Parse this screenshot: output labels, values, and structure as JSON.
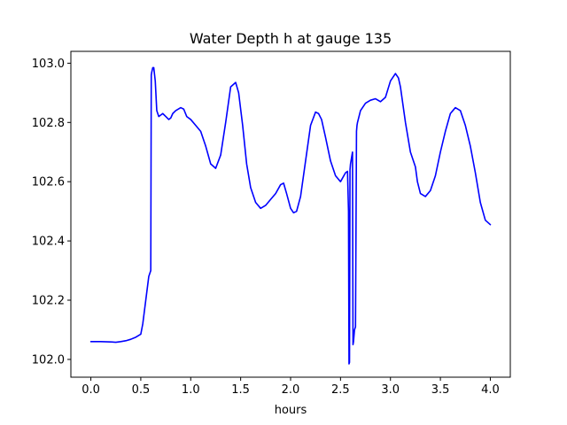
{
  "chart_data": {
    "type": "line",
    "title": "Water Depth h at gauge 135",
    "xlabel": "hours",
    "ylabel": "",
    "xlim": [
      -0.2,
      4.2
    ],
    "ylim": [
      101.94,
      103.04
    ],
    "xticks": [
      0.0,
      0.5,
      1.0,
      1.5,
      2.0,
      2.5,
      3.0,
      3.5,
      4.0
    ],
    "xtick_labels": [
      "0.0",
      "0.5",
      "1.0",
      "1.5",
      "2.0",
      "2.5",
      "3.0",
      "3.5",
      "4.0"
    ],
    "yticks": [
      102.0,
      102.2,
      102.4,
      102.6,
      102.8,
      103.0
    ],
    "ytick_labels": [
      "102.0",
      "102.2",
      "102.4",
      "102.6",
      "102.8",
      "103.0"
    ],
    "grid": false,
    "series": [
      {
        "color": "#0000ff",
        "x": [
          0.0,
          0.1,
          0.2,
          0.25,
          0.3,
          0.35,
          0.4,
          0.45,
          0.5,
          0.52,
          0.55,
          0.58,
          0.6,
          0.605,
          0.61,
          0.62,
          0.63,
          0.645,
          0.66,
          0.68,
          0.72,
          0.75,
          0.78,
          0.8,
          0.82,
          0.85,
          0.9,
          0.93,
          0.96,
          1.0,
          1.05,
          1.1,
          1.15,
          1.2,
          1.25,
          1.3,
          1.35,
          1.4,
          1.45,
          1.48,
          1.52,
          1.56,
          1.6,
          1.65,
          1.7,
          1.75,
          1.8,
          1.85,
          1.9,
          1.93,
          1.96,
          2.0,
          2.03,
          2.06,
          2.1,
          2.15,
          2.2,
          2.25,
          2.28,
          2.31,
          2.35,
          2.4,
          2.45,
          2.5,
          2.55,
          2.57,
          2.58,
          2.585,
          2.59,
          2.595,
          2.6,
          2.61,
          2.62,
          2.625,
          2.63,
          2.64,
          2.65,
          2.66,
          2.665,
          2.67,
          2.7,
          2.75,
          2.8,
          2.85,
          2.9,
          2.95,
          3.0,
          3.05,
          3.08,
          3.1,
          3.15,
          3.2,
          3.25,
          3.27,
          3.3,
          3.35,
          3.4,
          3.45,
          3.5,
          3.55,
          3.6,
          3.65,
          3.7,
          3.75,
          3.8,
          3.85,
          3.9,
          3.95,
          4.0
        ],
        "y": [
          102.06,
          102.06,
          102.059,
          102.058,
          102.06,
          102.063,
          102.068,
          102.075,
          102.085,
          102.12,
          102.2,
          102.28,
          102.3,
          102.96,
          102.97,
          102.985,
          102.985,
          102.94,
          102.84,
          102.82,
          102.83,
          102.82,
          102.81,
          102.815,
          102.83,
          102.84,
          102.85,
          102.845,
          102.82,
          102.81,
          102.79,
          102.77,
          102.72,
          102.66,
          102.645,
          102.69,
          102.8,
          102.92,
          102.935,
          102.9,
          102.79,
          102.66,
          102.58,
          102.53,
          102.51,
          102.52,
          102.54,
          102.56,
          102.59,
          102.595,
          102.56,
          102.51,
          102.495,
          102.5,
          102.55,
          102.67,
          102.79,
          102.835,
          102.83,
          102.81,
          102.75,
          102.67,
          102.62,
          102.6,
          102.63,
          102.635,
          102.5,
          101.985,
          101.99,
          102.64,
          102.66,
          102.68,
          102.7,
          102.05,
          102.06,
          102.1,
          102.11,
          102.77,
          102.79,
          102.8,
          102.84,
          102.865,
          102.875,
          102.88,
          102.87,
          102.885,
          102.94,
          102.965,
          102.95,
          102.92,
          102.8,
          102.7,
          102.65,
          102.6,
          102.56,
          102.55,
          102.57,
          102.62,
          102.7,
          102.77,
          102.83,
          102.85,
          102.84,
          102.79,
          102.72,
          102.63,
          102.53,
          102.47,
          102.455
        ]
      }
    ]
  }
}
